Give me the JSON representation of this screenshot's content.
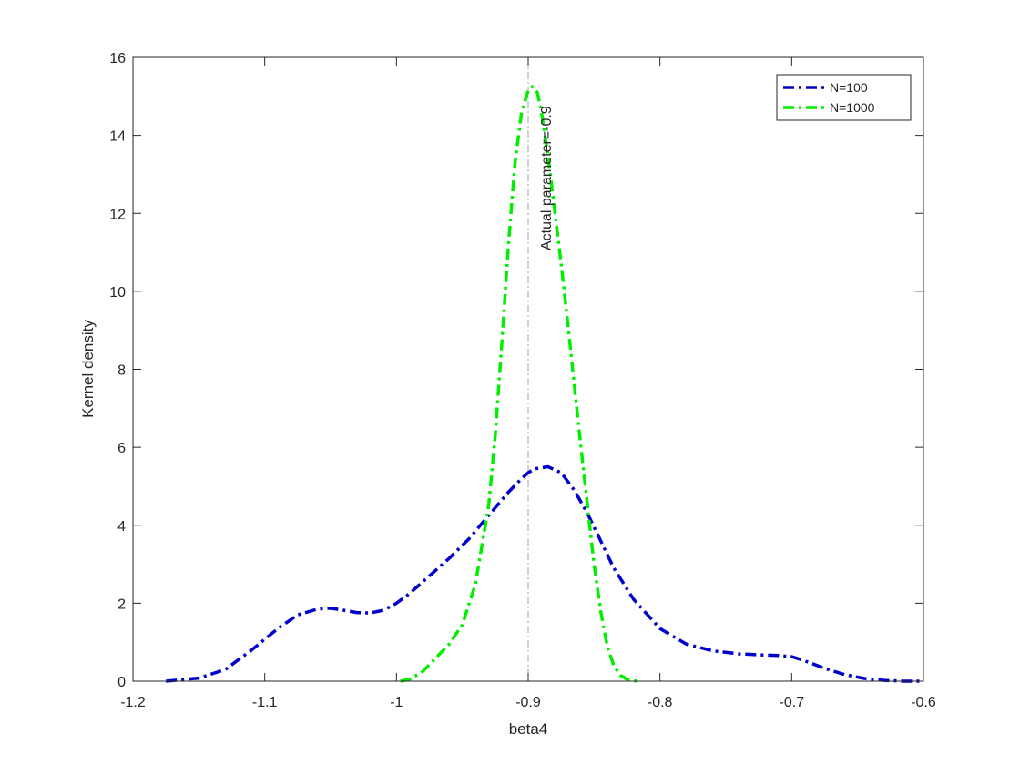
{
  "chart_data": {
    "type": "line",
    "title": "",
    "xlabel": "beta4",
    "ylabel": "Kernel density",
    "xlim": [
      -1.2,
      -0.6
    ],
    "ylim": [
      0,
      16
    ],
    "xticks": [
      -1.2,
      -1.1,
      -1.0,
      -0.9,
      -0.8,
      -0.7,
      -0.6
    ],
    "xtick_labels": [
      "-1.2",
      "-1.1",
      "-1",
      "-0.9",
      "-0.8",
      "-0.7",
      "-0.6"
    ],
    "yticks": [
      0,
      2,
      4,
      6,
      8,
      10,
      12,
      14,
      16
    ],
    "ytick_labels": [
      "0",
      "2",
      "4",
      "6",
      "8",
      "10",
      "12",
      "14",
      "16"
    ],
    "grid": false,
    "legend_position": "top-right",
    "annotation": {
      "text": "Actual parameter=-0.9",
      "x": -0.9,
      "line_color": "#a6a6a6"
    },
    "series": [
      {
        "name": "N=100",
        "color": "#0000cc",
        "line_style": "dash-dot",
        "x": [
          -1.175,
          -1.15,
          -1.13,
          -1.11,
          -1.09,
          -1.075,
          -1.06,
          -1.05,
          -1.04,
          -1.03,
          -1.02,
          -1.01,
          -1.0,
          -0.99,
          -0.975,
          -0.96,
          -0.945,
          -0.93,
          -0.915,
          -0.905,
          -0.9,
          -0.895,
          -0.885,
          -0.875,
          -0.865,
          -0.855,
          -0.845,
          -0.835,
          -0.82,
          -0.8,
          -0.78,
          -0.76,
          -0.74,
          -0.72,
          -0.71,
          -0.7,
          -0.69,
          -0.675,
          -0.66,
          -0.645,
          -0.63,
          -0.615,
          -0.6
        ],
        "y": [
          0.0,
          0.08,
          0.3,
          0.8,
          1.35,
          1.7,
          1.85,
          1.87,
          1.82,
          1.76,
          1.75,
          1.82,
          2.0,
          2.25,
          2.7,
          3.15,
          3.65,
          4.25,
          4.85,
          5.2,
          5.35,
          5.45,
          5.5,
          5.35,
          4.9,
          4.3,
          3.6,
          2.9,
          2.1,
          1.35,
          0.95,
          0.78,
          0.7,
          0.67,
          0.66,
          0.63,
          0.52,
          0.33,
          0.17,
          0.07,
          0.02,
          0.0,
          0.0
        ]
      },
      {
        "name": "N=1000",
        "color": "#00ee00",
        "line_style": "dash-dot",
        "x": [
          -0.997,
          -0.99,
          -0.98,
          -0.97,
          -0.96,
          -0.95,
          -0.94,
          -0.93,
          -0.925,
          -0.92,
          -0.915,
          -0.91,
          -0.905,
          -0.9,
          -0.897,
          -0.893,
          -0.89,
          -0.885,
          -0.88,
          -0.875,
          -0.87,
          -0.865,
          -0.86,
          -0.855,
          -0.85,
          -0.845,
          -0.84,
          -0.835,
          -0.83,
          -0.825,
          -0.82,
          -0.815
        ],
        "y": [
          0.0,
          0.05,
          0.25,
          0.6,
          0.95,
          1.45,
          2.5,
          4.5,
          6.3,
          8.7,
          11.2,
          13.3,
          14.6,
          15.15,
          15.25,
          15.1,
          14.6,
          13.5,
          12.1,
          10.7,
          9.2,
          7.6,
          6.0,
          4.5,
          3.0,
          1.8,
          0.9,
          0.4,
          0.15,
          0.05,
          0.01,
          0.0
        ]
      }
    ]
  }
}
